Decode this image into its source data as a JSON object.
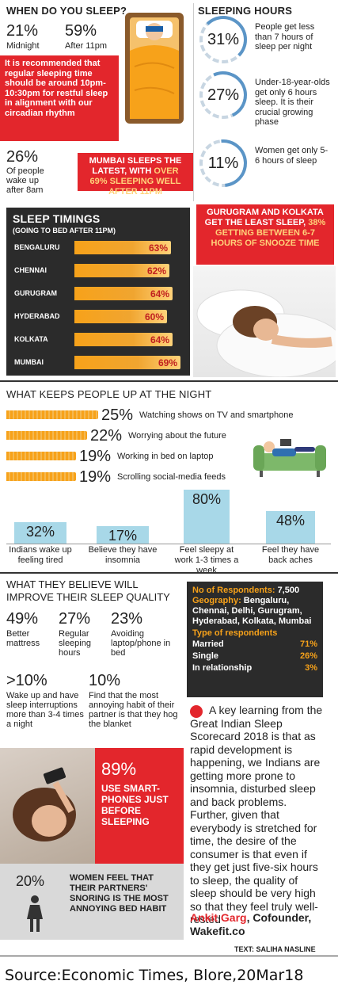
{
  "sleep_time": {
    "title": "WHEN DO YOU SLEEP?",
    "stat1_pct": "21%",
    "stat1_label": "Midnight",
    "stat2_pct": "59%",
    "stat2_label": "After 11pm",
    "recommend_text": "It is recommended that regular sleeping time should be around 10pm-10:30pm for restful sleep in alignment with our circadian rhythm",
    "wake_pct": "26%",
    "wake_label": "Of people wake up after 8am",
    "mumbai_text_a": "MUMBAI SLEEPS THE LATEST, WITH ",
    "mumbai_text_b": "OVER 69% SLEEPING WELL AFTER 11PM"
  },
  "sleeping_hours": {
    "title": "SLEEPING HOURS",
    "items": [
      {
        "pct": "31%",
        "label": "People get less than 7 hours of sleep per night"
      },
      {
        "pct": "27%",
        "label": "Under-18-year-olds get only 6 hours sleep. It is their crucial growing phase"
      },
      {
        "pct": "11%",
        "label": "Women get only 5-6 hours of sleep"
      }
    ],
    "gurugram_text_a": "GURUGRAM AND KOLKATA GET THE LEAST SLEEP, ",
    "gurugram_text_b": "38% GETTING BETWEEN 6-7 HOURS OF SNOOZE TIME"
  },
  "timings": {
    "title": "SLEEP TIMINGS",
    "subtitle": "(GOING TO BED AFTER 11PM)"
  },
  "chart_data": [
    {
      "type": "bar",
      "title": "SLEEP TIMINGS",
      "subtitle": "(GOING TO BED AFTER 11PM)",
      "categories": [
        "BENGALURU",
        "CHENNAI",
        "GURUGRAM",
        "HYDERABAD",
        "KOLKATA",
        "MUMBAI"
      ],
      "values": [
        63,
        62,
        64,
        60,
        64,
        69
      ],
      "value_labels": [
        "63%",
        "62%",
        "64%",
        "60%",
        "64%",
        "69%"
      ],
      "orientation": "horizontal"
    },
    {
      "type": "bar",
      "title": "WHAT KEEPS PEOPLE UP AT THE NIGHT",
      "categories": [
        "Watching shows on TV and smartphone",
        "Worrying about the future",
        "Working in bed on laptop",
        "Scrolling social-media feeds"
      ],
      "values": [
        25,
        22,
        19,
        19
      ],
      "value_labels": [
        "25%",
        "22%",
        "19%",
        "19%"
      ],
      "orientation": "horizontal"
    },
    {
      "type": "bar",
      "categories": [
        "Indians wake up feeling tired",
        "Believe they have insomnia",
        "Feel sleepy at work 1-3 times a week",
        "Feel they have back aches"
      ],
      "values": [
        32,
        17,
        80,
        48
      ],
      "value_labels": [
        "32%",
        "17%",
        "80%",
        "48%"
      ],
      "orientation": "vertical"
    }
  ],
  "up_at_night": {
    "title": "WHAT KEEPS PEOPLE UP AT THE NIGHT"
  },
  "improve": {
    "title": "WHAT THEY BELIEVE WILL IMPROVE THEIR SLEEP QUALITY",
    "items": [
      {
        "pct": "49%",
        "label": "Better mattress"
      },
      {
        "pct": "27%",
        "label": "Regular sleeping hours"
      },
      {
        "pct": "23%",
        "label": "Avoiding laptop/phone in bed"
      }
    ],
    "item4_pct": ">10%",
    "item4_label": "Wake up and have sleep interruptions more than 3-4 times a night",
    "item5_pct": "10%",
    "item5_label": "Find that the most annoying habit of their partner is that they hog the blanket",
    "phone_pct": "89%",
    "phone_label": "USE SMART-PHONES JUST BEFORE SLEEPING",
    "snore_pct": "20%",
    "snore_label": "WOMEN FEEL THAT THEIR PARTNERS' SNORING IS THE MOST ANNOYING BED HABIT"
  },
  "respondents": {
    "count_label": "No of Respondents:",
    "count_value": "7,500",
    "geo_label": "Geography:",
    "geo_value": "Bengaluru, Chennai, Delhi, Gurugram, Hyderabad, Kolkata, Mumbai",
    "type_title": "Type of respondents",
    "rows": [
      {
        "label": "Married",
        "value": "71%"
      },
      {
        "label": "Single",
        "value": "26%"
      },
      {
        "label": "In relationship",
        "value": "3%"
      }
    ]
  },
  "quote": {
    "text": "A key learning from the Great Indian Sleep Scorecard 2018 is that as rapid development is happening, we Indians are getting more prone to insomnia, disturbed sleep and back problems. Further, given that everybody is stretched for time, the desire of the consumer is that even if they get just five-six hours to sleep, the quality of sleep should be very high so that they feel truly well-rested",
    "author": "Ankit Garg",
    "role": ", Cofounder, Wakefit.co"
  },
  "credit": "TEXT: SALIHA NASLINE",
  "source": "Source:Economic Times, Blore,20Mar18",
  "colors": {
    "red": "#e3262c",
    "orange": "#f7a21a",
    "dark": "#2b2b2b",
    "blue": "#5b95c7",
    "light_blue": "#a8d8e8"
  }
}
